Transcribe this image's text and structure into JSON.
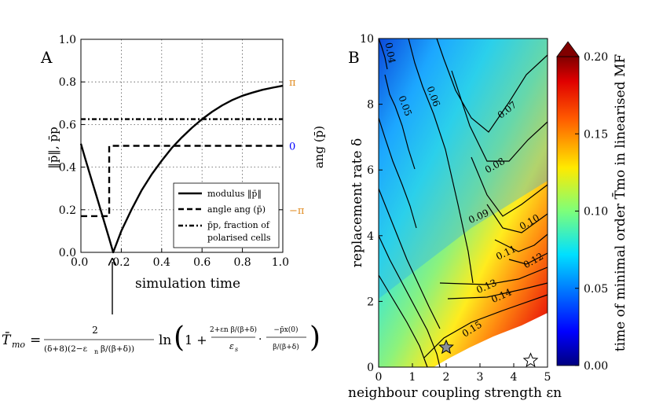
{
  "chart_data": [
    {
      "panel": "A",
      "type": "line",
      "xlabel": "simulation time",
      "ylabel": "‖p̄‖, p̄p",
      "y2label": "ang (p̄)",
      "xlim": [
        0.0,
        1.0
      ],
      "ylim": [
        0.0,
        1.0
      ],
      "xticks": [
        "0.0",
        "0.2",
        "0.4",
        "0.6",
        "0.8",
        "1.0"
      ],
      "yticks": [
        "0.0",
        "0.2",
        "0.4",
        "0.6",
        "0.8",
        "1.0"
      ],
      "y2ticks": [
        {
          "label": "π",
          "value": 0.8,
          "color": "#e08a1e"
        },
        {
          "label": "0",
          "value": 0.5,
          "color": "#0000ff"
        },
        {
          "label": "−π",
          "value": 0.2,
          "color": "#e08a1e"
        }
      ],
      "grid": true,
      "series": [
        {
          "name": "modulus ‖p̄‖",
          "style": "solid",
          "x": [
            0.0,
            0.02,
            0.05,
            0.08,
            0.11,
            0.14,
            0.16,
            0.2,
            0.25,
            0.3,
            0.35,
            0.4,
            0.45,
            0.5,
            0.55,
            0.6,
            0.65,
            0.7,
            0.75,
            0.8,
            0.85,
            0.9,
            0.95,
            1.0
          ],
          "values": [
            0.51,
            0.445,
            0.35,
            0.255,
            0.16,
            0.065,
            0.0,
            0.1,
            0.2,
            0.29,
            0.365,
            0.43,
            0.49,
            0.54,
            0.585,
            0.625,
            0.66,
            0.69,
            0.715,
            0.735,
            0.75,
            0.763,
            0.773,
            0.782
          ]
        },
        {
          "name": "angle ang (p̄)",
          "style": "dashed",
          "x": [
            0.0,
            0.14,
            0.14,
            1.0
          ],
          "values": [
            0.17,
            0.17,
            0.5,
            0.5
          ]
        },
        {
          "name": "p̄p, fraction of polarised cells",
          "style": "dashdot",
          "x": [
            0.0,
            1.0
          ],
          "values": [
            0.625,
            0.625
          ]
        }
      ],
      "legend": [
        {
          "label": "modulus ‖p̄‖",
          "style": "solid"
        },
        {
          "label": "angle ang (p̄)",
          "style": "dashed"
        },
        {
          "label": "p̄p, fraction of",
          "label2": "polarised cells",
          "style": "dashdot"
        }
      ],
      "legend_position": "lower-right",
      "annotation": "arrow pointing to minimum at t ≈ 0.15"
    },
    {
      "panel": "B",
      "type": "heatmap",
      "xlabel": "neighbour coupling strength εn",
      "ylabel": "replacement rate δ",
      "xlim": [
        0,
        5
      ],
      "ylim": [
        0,
        10
      ],
      "xticks": [
        "0",
        "1",
        "2",
        "3",
        "4",
        "5"
      ],
      "yticks": [
        "0",
        "2",
        "4",
        "6",
        "8",
        "10"
      ],
      "colorbar": {
        "label": "time of minimal order T̄mo in linearised MF",
        "range": [
          0.0,
          0.2
        ],
        "ticks": [
          "0.00",
          "0.05",
          "0.10",
          "0.15",
          "0.20"
        ],
        "colormap": "jet"
      },
      "contour_levels": [
        0.04,
        0.05,
        0.06,
        0.07,
        0.08,
        0.09,
        0.1,
        0.11,
        0.12,
        0.13,
        0.14,
        0.15
      ],
      "contour_labels": [
        "0.04",
        "0.05",
        "0.06",
        "0.07",
        "0.08",
        "0.09",
        "0.10",
        "0.11",
        "0.12",
        "0.13",
        "0.14",
        "0.15"
      ],
      "stars": [
        {
          "x": 2.0,
          "y": 0.6,
          "fill": "grey"
        },
        {
          "x": 4.5,
          "y": 0.2,
          "fill": "white"
        }
      ],
      "undefined_region": "lower-right (white)"
    }
  ],
  "labels": {
    "panel_a": "A",
    "panel_b": "B"
  },
  "formula": {
    "lhs_symbol": "T̄",
    "lhs_sub": "mo",
    "eq": "=",
    "frac_num": "2",
    "den_head": "(δ+8)(2−ε",
    "den_sub": "n",
    "den_tail": "β/(β+δ))",
    "ln": "ln",
    "one_plus": "1 +",
    "inner_num": "2+εn β/(β+δ)",
    "inner_den": "ε",
    "inner_den_sub": "s",
    "dot": "·",
    "inner2_num": "−p̄x(0)",
    "inner2_den": "β/(β+δ)"
  }
}
